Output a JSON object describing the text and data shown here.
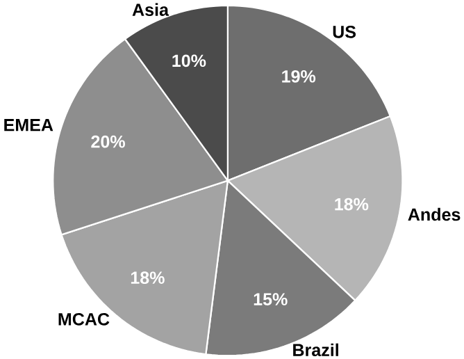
{
  "chart_data": {
    "type": "pie",
    "categories": [
      "US",
      "Andes",
      "Brazil",
      "MCAC",
      "EMEA",
      "Asia"
    ],
    "values": [
      19,
      18,
      15,
      18,
      20,
      10
    ],
    "value_labels": [
      "19%",
      "18%",
      "15%",
      "18%",
      "20%",
      "10%"
    ],
    "colors": [
      "#6e6e6e",
      "#b5b5b5",
      "#7b7b7b",
      "#a3a3a3",
      "#8e8e8e",
      "#4b4b4b"
    ]
  }
}
